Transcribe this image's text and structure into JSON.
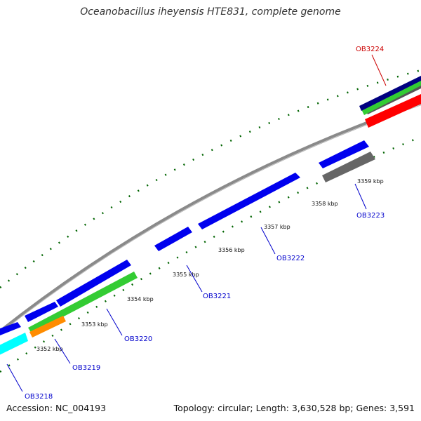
{
  "title": "Oceanobacillus iheyensis HTE831, complete genome",
  "footer": {
    "accession": "Accession: NC_004193",
    "stats": "Topology: circular; Length: 3,630,528 bp; Genes: 3,591"
  },
  "colors": {
    "forward_cds": "#0000ee",
    "reverse_cds": "#606060",
    "green_track": "#33cc33",
    "orange_track": "#ff8c00",
    "cyan_track": "#00ffff",
    "red_track": "#ff0000",
    "navy_track": "#000080",
    "backbone": "#8a8a8a",
    "ticks": "#006400",
    "gene_label": "#0000cc",
    "highlight_label": "#cc0000"
  },
  "kbp_labels": [
    "3352 kbp",
    "3353 kbp",
    "3354 kbp",
    "3355 kbp",
    "3356 kbp",
    "3357 kbp",
    "3358 kbp",
    "3359 kbp"
  ],
  "genes": [
    {
      "name": "OB3218",
      "color": "gene_label"
    },
    {
      "name": "OB3219",
      "color": "gene_label"
    },
    {
      "name": "OB3220",
      "color": "gene_label"
    },
    {
      "name": "OB3221",
      "color": "gene_label"
    },
    {
      "name": "OB3222",
      "color": "gene_label"
    },
    {
      "name": "OB3223",
      "color": "gene_label"
    },
    {
      "name": "OB3224",
      "color": "highlight_label"
    }
  ]
}
